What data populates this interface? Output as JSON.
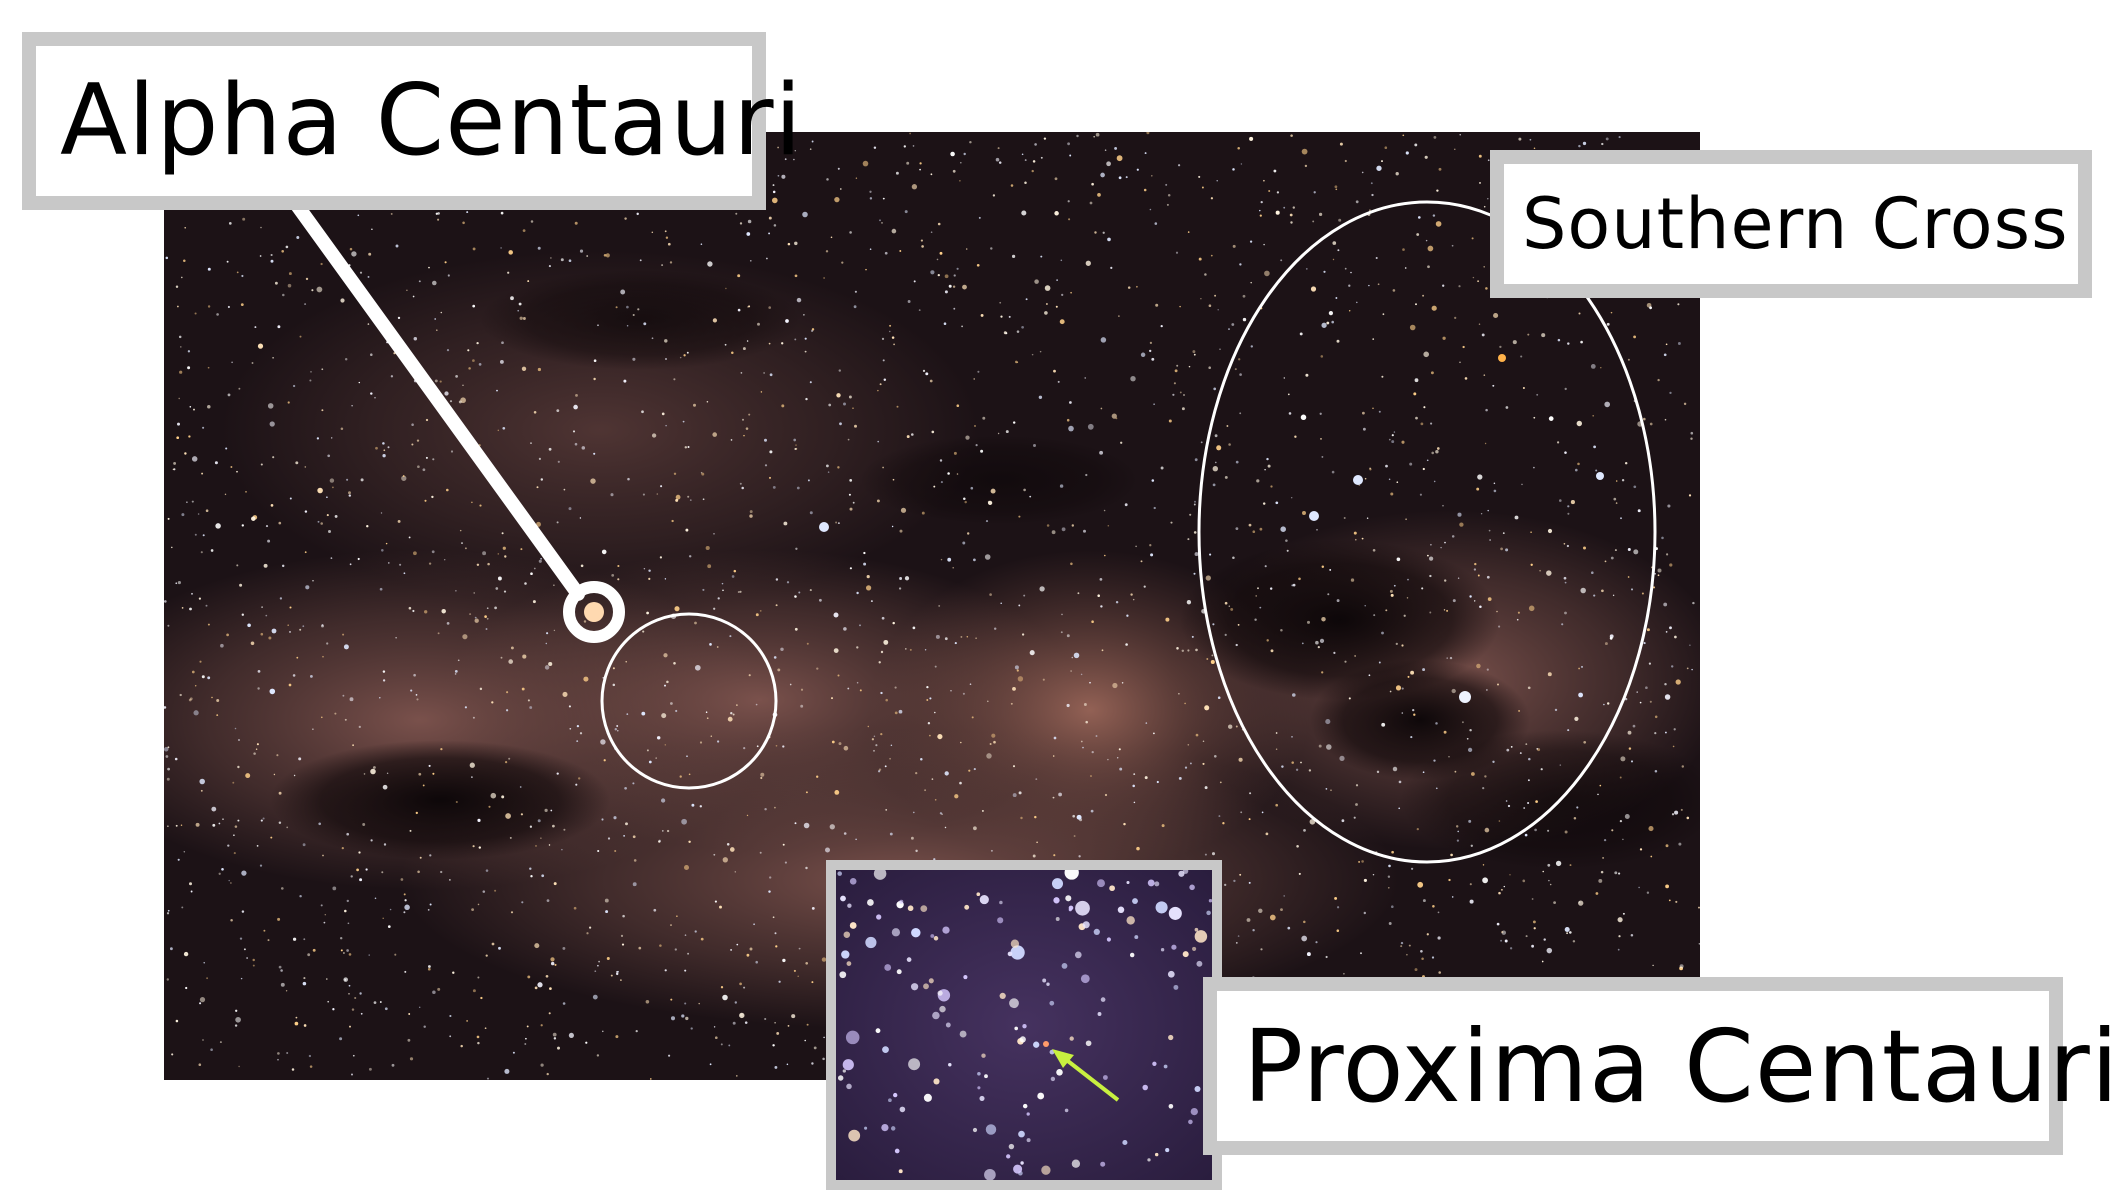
{
  "labels": {
    "alpha_centauri": "Alpha Centauri",
    "southern_cross": "Southern Cross",
    "proxima_centauri": "Proxima Centauri"
  },
  "colors": {
    "sky_dark": "#1a1114",
    "milky_way_glow": "#6e4a45",
    "dust_lane": "#0e0709",
    "inset_sky": "#3a2a55",
    "label_border": "#c8c8c8",
    "label_bg": "#ffffff",
    "marker": "#ffffff",
    "arrow": "#c8f040"
  }
}
